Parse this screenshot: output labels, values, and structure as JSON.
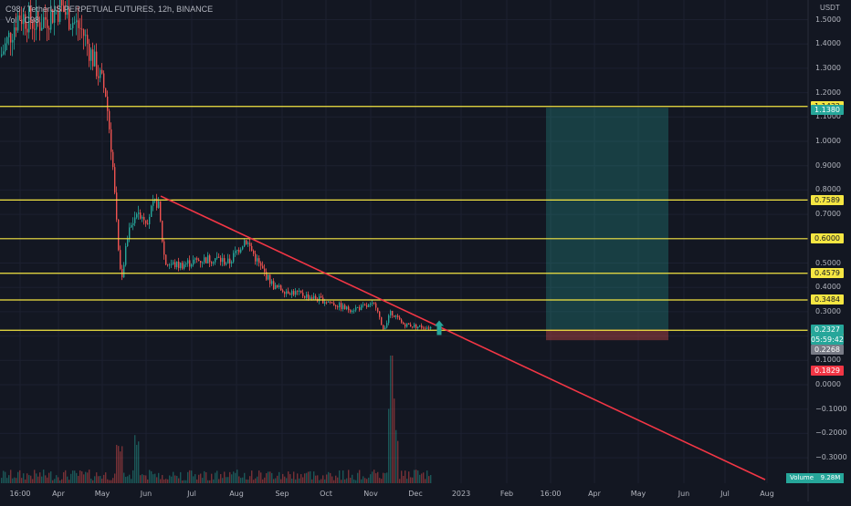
{
  "header": {
    "title": "C98 / TetherUS PERPETUAL FUTURES, 12h, BINANCE",
    "volume_label": "Vol · C98"
  },
  "price_axis": {
    "unit": "USDT",
    "ticks": [
      "1.5000",
      "1.4000",
      "1.3000",
      "1.2000",
      "1.1000",
      "1.0000",
      "0.9000",
      "0.8000",
      "0.7000",
      "0.6000",
      "0.5000",
      "0.4000",
      "0.3000",
      "0.2000",
      "0.1000",
      "0.0000",
      "−0.1000",
      "−0.2000",
      "−0.3000"
    ],
    "tick_values": [
      1.5,
      1.4,
      1.3,
      1.2,
      1.1,
      1.0,
      0.9,
      0.8,
      0.7,
      0.6,
      0.5,
      0.4,
      0.3,
      0.2,
      0.1,
      0.0,
      -0.1,
      -0.2,
      -0.3
    ]
  },
  "time_axis": {
    "ticks": [
      "16:00",
      "Apr",
      "May",
      "Jun",
      "Jul",
      "Aug",
      "Sep",
      "Oct",
      "Nov",
      "Dec",
      "2023",
      "Feb",
      "16:00",
      "Apr",
      "May",
      "Jun",
      "Jul",
      "Aug"
    ]
  },
  "levels": [
    {
      "label": "1.1432",
      "value": 1.1432
    },
    {
      "label": "0.7589",
      "value": 0.7589
    },
    {
      "label": "0.6000",
      "value": 0.6
    },
    {
      "label": "0.4579",
      "value": 0.4579
    },
    {
      "label": "0.3484",
      "value": 0.3484
    },
    {
      "label": "0.2237",
      "value": 0.2237
    }
  ],
  "price_tags": {
    "target": "1.1380",
    "current": "0.2327",
    "countdown": "05:59:42",
    "entry": "0.2268",
    "stop": "0.1829"
  },
  "volume_tags": {
    "label": "Volume",
    "value": "9.28M"
  },
  "position": {
    "entry": 0.2268,
    "target": 1.138,
    "stop": 0.1829
  },
  "trendline": {
    "start": {
      "time": "Jun",
      "price": 0.775
    },
    "end": {
      "time": "Aug",
      "price": -0.39
    }
  },
  "colors": {
    "background": "#131722",
    "level_line": "#f5e642",
    "trendline": "#f23645",
    "profit_zone": "#26a69a",
    "loss_zone": "#ef5350",
    "bull": "#26a69a",
    "bear": "#ef5350",
    "current_tag": "#26a69a",
    "entry_tag": "#787b86",
    "stop_tag": "#f23645"
  },
  "chart_data": {
    "type": "candlestick",
    "title": "C98 / TetherUS PERPETUAL FUTURES, 12h, BINANCE",
    "ylabel": "USDT",
    "ylim": [
      -0.33,
      1.56
    ],
    "approx_close_path": [
      {
        "t": "Mar",
        "v": 1.35
      },
      {
        "t": "Apr",
        "v": 1.5
      },
      {
        "t": "Apr",
        "v": 1.55
      },
      {
        "t": "May",
        "v": 1.25
      },
      {
        "t": "May",
        "v": 0.75
      },
      {
        "t": "May",
        "v": 0.43
      },
      {
        "t": "Jun",
        "v": 0.7
      },
      {
        "t": "Jun",
        "v": 0.74
      },
      {
        "t": "Jul",
        "v": 0.47
      },
      {
        "t": "Jul",
        "v": 0.5
      },
      {
        "t": "Aug",
        "v": 0.53
      },
      {
        "t": "Aug",
        "v": 0.57
      },
      {
        "t": "Sep",
        "v": 0.4
      },
      {
        "t": "Sep",
        "v": 0.38
      },
      {
        "t": "Oct",
        "v": 0.35
      },
      {
        "t": "Oct",
        "v": 0.32
      },
      {
        "t": "Nov",
        "v": 0.3
      },
      {
        "t": "Nov",
        "v": 0.21
      },
      {
        "t": "Dec",
        "v": 0.24
      },
      {
        "t": "Dec",
        "v": 0.2327
      }
    ]
  }
}
